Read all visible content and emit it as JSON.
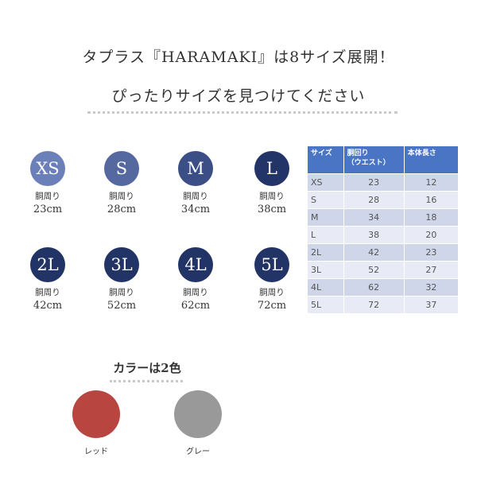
{
  "heading": {
    "line1": "タプラス『HARAMAKI』は8サイズ展開！",
    "line2": "ぴったりサイズを見つけてください"
  },
  "sizes": [
    {
      "size": "XS",
      "label": "胴周り",
      "value": "23cm",
      "color": "#6b7fb8"
    },
    {
      "size": "S",
      "label": "胴周り",
      "value": "28cm",
      "color": "#55689f"
    },
    {
      "size": "M",
      "label": "胴周り",
      "value": "34cm",
      "color": "#3b4e85"
    },
    {
      "size": "L",
      "label": "胴周り",
      "value": "38cm",
      "color": "#233468"
    },
    {
      "size": "2L",
      "label": "胴周り",
      "value": "42cm",
      "color": "#223366"
    },
    {
      "size": "3L",
      "label": "胴周り",
      "value": "52cm",
      "color": "#223366"
    },
    {
      "size": "4L",
      "label": "胴周り",
      "value": "62cm",
      "color": "#223366"
    },
    {
      "size": "5L",
      "label": "胴周り",
      "value": "72cm",
      "color": "#223366"
    }
  ],
  "table": {
    "headers": [
      "サイズ",
      "胴回り\n（ウエスト）",
      "本体長さ"
    ],
    "rows": [
      [
        "XS",
        "23",
        "12"
      ],
      [
        "S",
        "28",
        "16"
      ],
      [
        "M",
        "34",
        "18"
      ],
      [
        "L",
        "38",
        "20"
      ],
      [
        "2L",
        "42",
        "23"
      ],
      [
        "3L",
        "52",
        "27"
      ],
      [
        "4L",
        "62",
        "32"
      ],
      [
        "5L",
        "72",
        "37"
      ]
    ]
  },
  "colors": {
    "title": "カラーは2色",
    "items": [
      {
        "label": "レッド",
        "hex": "#b8453f"
      },
      {
        "label": "グレー",
        "hex": "#999999"
      }
    ]
  }
}
